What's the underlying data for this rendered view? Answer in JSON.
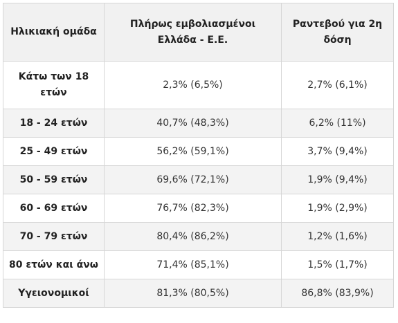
{
  "table": {
    "headers": [
      "Ηλικιακή ομάδα",
      "Πλήρως εμβολιασμένοι Ελλάδα - Ε.Ε.",
      "Ραντεβού για 2η δόση"
    ],
    "rows": [
      {
        "group": "Κάτω των 18 ετών",
        "full": "2,3% (6,5%)",
        "second": "2,7% (6,1%)"
      },
      {
        "group": "18 - 24 ετών",
        "full": "40,7% (48,3%)",
        "second": "6,2% (11%)"
      },
      {
        "group": "25 - 49 ετών",
        "full": "56,2% (59,1%)",
        "second": "3,7% (9,4%)"
      },
      {
        "group": "50 - 59 ετών",
        "full": "69,6% (72,1%)",
        "second": "1,9% (9,4%)"
      },
      {
        "group": "60 - 69 ετών",
        "full": "76,7% (82,3%)",
        "second": "1,9% (2,9%)"
      },
      {
        "group": "70 - 79 ετών",
        "full": "80,4% (86,2%)",
        "second": "1,2% (1,6%)"
      },
      {
        "group": "80 ετών και άνω",
        "full": "71,4% (85,1%)",
        "second": "1,5% (1,7%)"
      },
      {
        "group": "Υγειονομικοί",
        "full": "81,3% (80,5%)",
        "second": "86,8% (83,9%)"
      }
    ]
  }
}
